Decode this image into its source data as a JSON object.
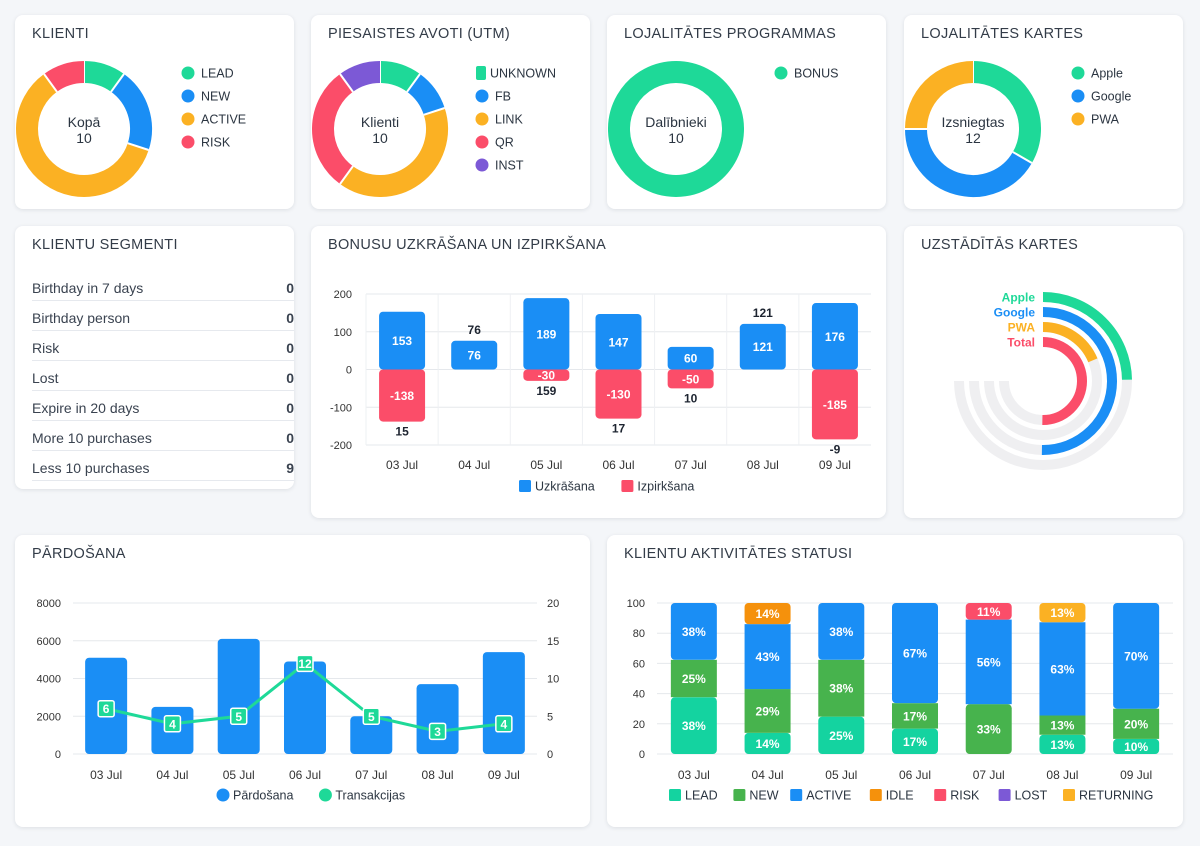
{
  "colors": {
    "green": "#1ed998",
    "blue": "#1a8ef5",
    "orange": "#fbb123",
    "red": "#fb4d69",
    "purple": "#7c59d6",
    "darkgreen": "#47b34d",
    "teal": "#14d3a0",
    "amber": "#f59d1b",
    "grid": "#e5e8ec",
    "track": "#efeff1"
  },
  "klienti": {
    "title": "KLIENTI",
    "center_label": "Kopā",
    "center_value": "10",
    "slices": [
      {
        "name": "LEAD",
        "value": 1,
        "color": "#1ed998",
        "icon": "circle-marker"
      },
      {
        "name": "NEW",
        "value": 2,
        "color": "#1a8ef5",
        "icon": "circle-marker"
      },
      {
        "name": "ACTIVE",
        "value": 6,
        "color": "#fbb123",
        "icon": "circle-marker"
      },
      {
        "name": "RISK",
        "value": 1,
        "color": "#fb4d69",
        "icon": "circle-marker"
      }
    ]
  },
  "utm": {
    "title": "PIESAISTES AVOTI (UTM)",
    "center_label": "Klienti",
    "center_value": "10",
    "slices": [
      {
        "name": "UNKNOWN",
        "value": 1,
        "color": "#1ed998",
        "icon": "square-marker"
      },
      {
        "name": "FB",
        "value": 1,
        "color": "#1a8ef5",
        "icon": "circle-marker"
      },
      {
        "name": "LINK",
        "value": 4,
        "color": "#fbb123",
        "icon": "circle-marker"
      },
      {
        "name": "QR",
        "value": 3,
        "color": "#fb4d69",
        "icon": "circle-marker"
      },
      {
        "name": "INST",
        "value": 1,
        "color": "#7c59d6",
        "icon": "circle-marker"
      }
    ]
  },
  "loyalty": {
    "title": "LOJALITĀTES PROGRAMMAS",
    "center_label": "Dalībnieki",
    "center_value": "10",
    "slices": [
      {
        "name": "BONUS",
        "value": 10,
        "color": "#1ed998",
        "icon": "circle-marker"
      }
    ]
  },
  "cards": {
    "title": "LOJALITĀTES KARTES",
    "center_label": "Izsniegtas",
    "center_value": "12",
    "slices": [
      {
        "name": "Apple",
        "value": 4,
        "color": "#1ed998",
        "icon": "circle-marker"
      },
      {
        "name": "Google",
        "value": 5,
        "color": "#1a8ef5",
        "icon": "circle-marker"
      },
      {
        "name": "PWA",
        "value": 3,
        "color": "#fbb123",
        "icon": "circle-marker"
      }
    ]
  },
  "segments": {
    "title": "KLIENTU SEGMENTI",
    "rows": [
      {
        "label": "Birthday in 7 days",
        "value": "0"
      },
      {
        "label": "Birthday person",
        "value": "0"
      },
      {
        "label": "Risk",
        "value": "0"
      },
      {
        "label": "Lost",
        "value": "0"
      },
      {
        "label": "Expire in 20 days",
        "value": "0"
      },
      {
        "label": "More 10 purchases",
        "value": "0"
      },
      {
        "label": "Less 10 purchases",
        "value": "9"
      }
    ]
  },
  "installed": {
    "title": "UZSTĀDĪTĀS KARTES",
    "rings": [
      {
        "name": "Apple",
        "fraction": 0.33,
        "color": "#1ed998"
      },
      {
        "name": "Google",
        "fraction": 0.67,
        "color": "#1a8ef5"
      },
      {
        "name": "PWA",
        "fraction": 0.25,
        "color": "#fbb123"
      },
      {
        "name": "Total",
        "fraction": 0.67,
        "color": "#fb4d69"
      }
    ]
  },
  "chart_data": [
    {
      "id": "bonus",
      "type": "bar",
      "title": "BONUSU UZKRĀŠANA UN IZPIRKŠANA",
      "categories": [
        "03 Jul",
        "04 Jul",
        "05 Jul",
        "06 Jul",
        "07 Jul",
        "08 Jul",
        "09 Jul"
      ],
      "ylim": [
        -200,
        200
      ],
      "yticks": [
        200,
        100,
        0,
        -100,
        -200
      ],
      "series": [
        {
          "name": "Uzkrāšana",
          "color": "#1a8ef5",
          "values": [
            153,
            76,
            189,
            147,
            60,
            121,
            176
          ]
        },
        {
          "name": "Izpirkšana",
          "color": "#fb4d69",
          "values": [
            -138,
            0,
            -30,
            -130,
            -50,
            0,
            -185
          ]
        }
      ],
      "totals": [
        15,
        76,
        159,
        17,
        10,
        121,
        -9
      ],
      "series_labels": [
        [
          "153",
          "76",
          "189",
          "147",
          "60",
          "121",
          "176"
        ],
        [
          "-138",
          "",
          "-30",
          "-130",
          "-50",
          "",
          ""
        ]
      ],
      "neg_label_extra": [
        "",
        "",
        "",
        "",
        "",
        "",
        "-185"
      ],
      "total_labels": [
        "15",
        "76",
        "159",
        "17",
        "10",
        "121",
        "-9"
      ]
    },
    {
      "id": "sales",
      "type": "bar",
      "title": "PĀRDOŠANA",
      "categories": [
        "03 Jul",
        "04 Jul",
        "05 Jul",
        "06 Jul",
        "07 Jul",
        "08 Jul",
        "09 Jul"
      ],
      "ylim": [
        0,
        8000
      ],
      "yticks": [
        8000,
        6000,
        4000,
        2000,
        0
      ],
      "y2lim": [
        0,
        20
      ],
      "y2ticks": [
        20,
        15,
        10,
        5,
        0
      ],
      "series": [
        {
          "name": "Pārdošana",
          "type": "bar",
          "color": "#1a8ef5",
          "values": [
            5100,
            2500,
            6100,
            4900,
            2000,
            3700,
            5400
          ]
        },
        {
          "name": "Transakcijas",
          "type": "line",
          "color": "#1ed998",
          "values": [
            6,
            4,
            5,
            12,
            5,
            3,
            4
          ]
        }
      ],
      "point_labels": [
        "6",
        "4",
        "5",
        "12",
        "5",
        "3",
        "4"
      ]
    },
    {
      "id": "activity",
      "type": "bar",
      "title": "KLIENTU AKTIVITĀTES STATUSI",
      "categories": [
        "03 Jul",
        "04 Jul",
        "05 Jul",
        "06 Jul",
        "07 Jul",
        "08 Jul",
        "09 Jul"
      ],
      "ylim": [
        0,
        100
      ],
      "yticks": [
        100,
        80,
        60,
        40,
        20,
        0
      ],
      "series": [
        {
          "name": "LEAD",
          "color": "#14d3a0",
          "values": [
            38,
            14,
            25,
            17,
            0,
            13,
            10
          ],
          "labels": [
            "38%",
            "14%",
            "25%",
            "17%",
            "",
            "13%",
            "10%"
          ]
        },
        {
          "name": "NEW",
          "color": "#47b34d",
          "values": [
            25,
            29,
            38,
            17,
            33,
            13,
            20
          ],
          "labels": [
            "25%",
            "29%",
            "38%",
            "17%",
            "33%",
            "13%",
            "20%"
          ]
        },
        {
          "name": "ACTIVE",
          "color": "#1a8ef5",
          "values": [
            38,
            43,
            38,
            67,
            56,
            63,
            70
          ],
          "labels": [
            "38%",
            "43%",
            "38%",
            "67%",
            "56%",
            "63%",
            "70%"
          ]
        },
        {
          "name": "IDLE",
          "color": "#f5910c",
          "values": [
            0,
            14,
            0,
            0,
            0,
            0,
            0
          ],
          "labels": [
            "",
            "14%",
            "",
            "",
            "",
            "",
            ""
          ]
        },
        {
          "name": "RISK",
          "color": "#fb4d69",
          "values": [
            0,
            0,
            0,
            0,
            11,
            0,
            0
          ],
          "labels": [
            "",
            "",
            "",
            "",
            "11%",
            "",
            ""
          ]
        },
        {
          "name": "LOST",
          "color": "#7c59d6",
          "values": [
            0,
            0,
            0,
            0,
            0,
            0,
            0
          ],
          "labels": [
            "",
            "",
            "",
            "",
            "",
            "",
            ""
          ]
        },
        {
          "name": "RETURNING",
          "color": "#fbb123",
          "values": [
            0,
            0,
            0,
            0,
            0,
            13,
            0
          ],
          "labels": [
            "",
            "",
            "",
            "",
            "",
            "13%",
            ""
          ]
        }
      ]
    }
  ]
}
